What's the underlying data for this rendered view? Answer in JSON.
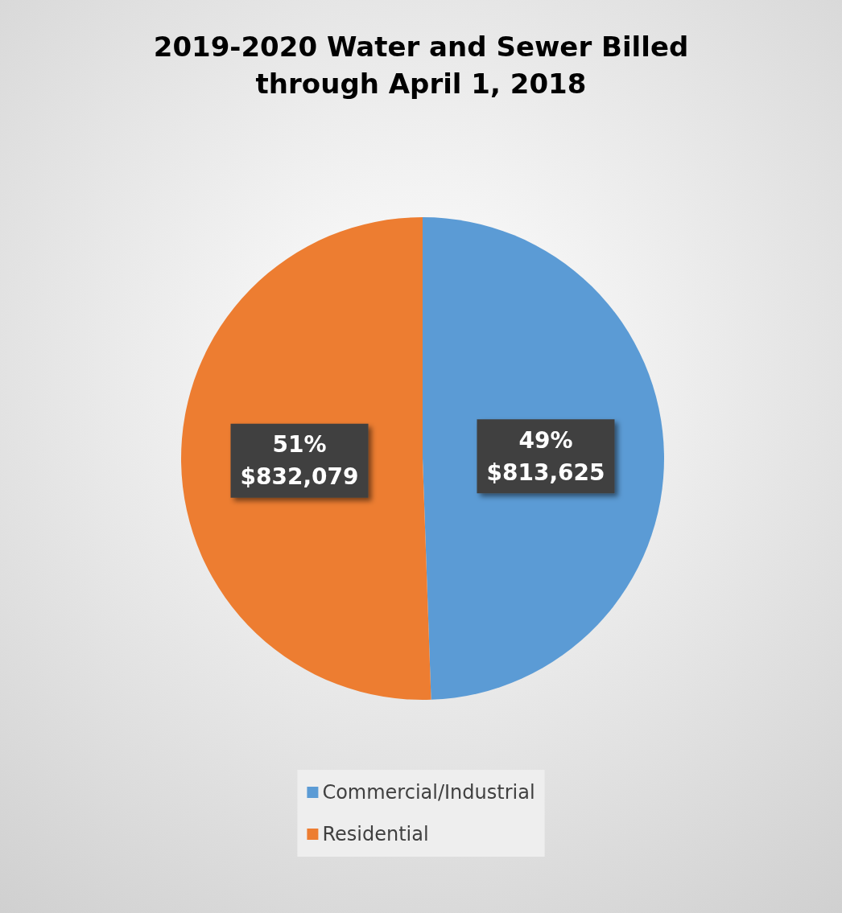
{
  "chart_data": {
    "type": "pie",
    "title": "2019-2020 Water and Sewer Billed\nthrough April 1, 2018",
    "categories": [
      "Commercial/Industrial",
      "Residential"
    ],
    "values": [
      813625,
      832079
    ],
    "colors": [
      "#5b9bd5",
      "#ed7d31"
    ],
    "value_labels": [
      "49%\n$813,625",
      "51%\n$832,079"
    ],
    "legend": "bottom"
  }
}
